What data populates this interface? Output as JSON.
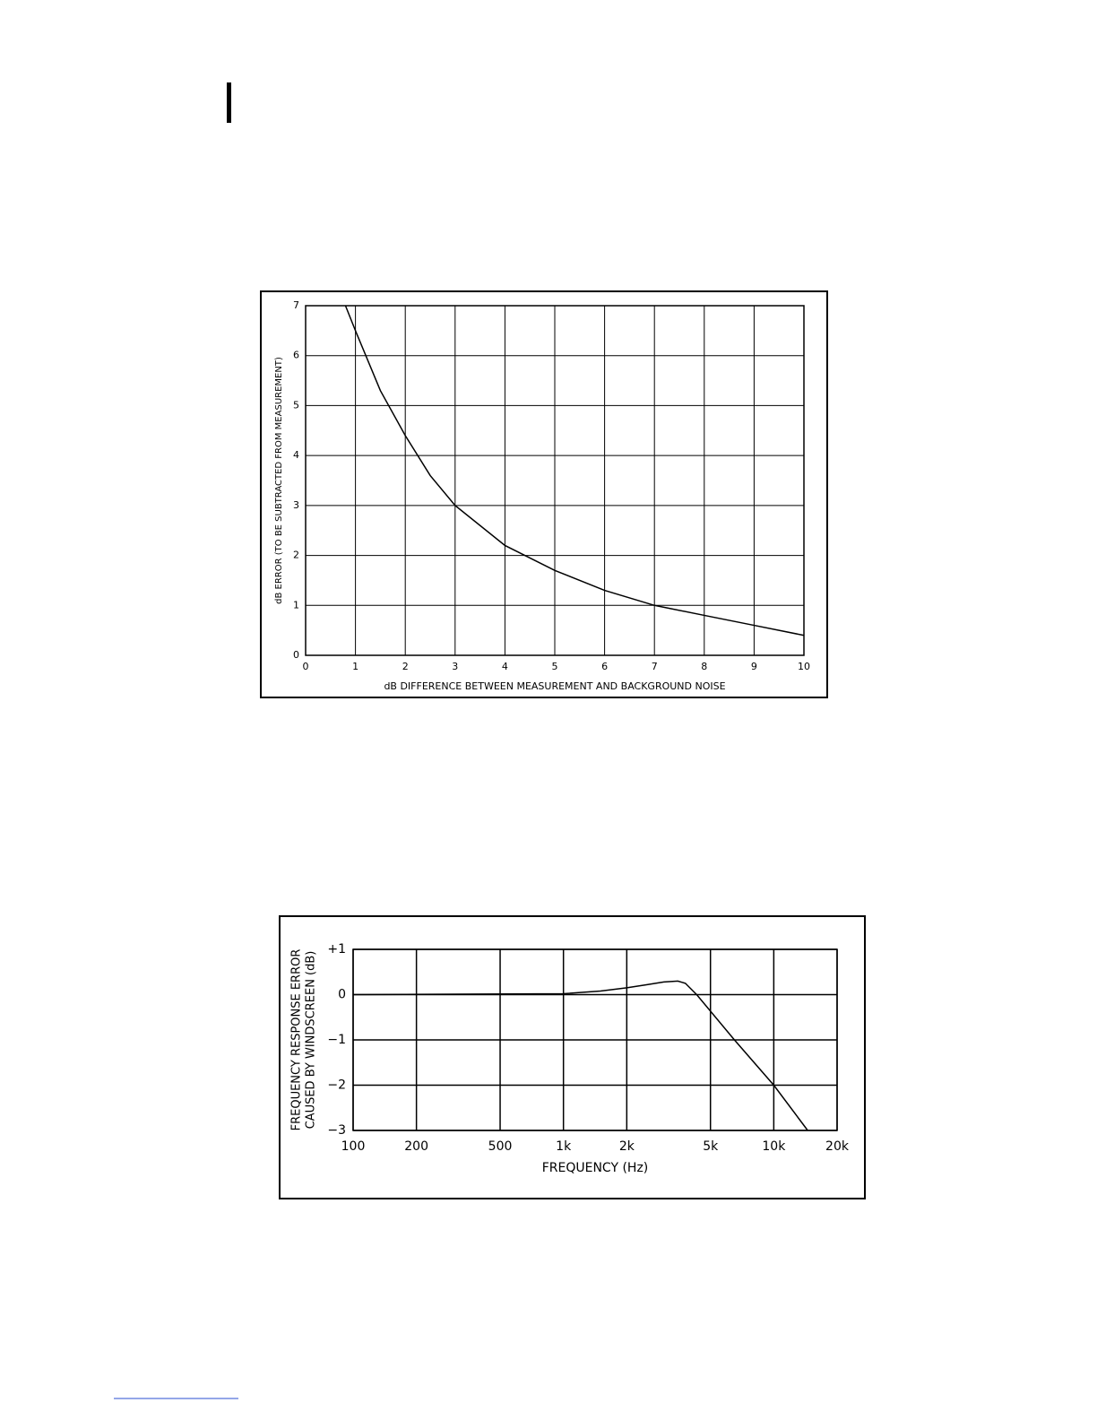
{
  "chart_data": [
    {
      "type": "line",
      "color": "#000000",
      "grid": true,
      "xlabel": "dB DIFFERENCE BETWEEN MEASUREMENT AND BACKGROUND NOISE",
      "ylabel": [
        "dB ERROR (TO BE SUBTRACTED FROM MEASUREMENT)"
      ],
      "x": [
        0.8,
        1,
        1.5,
        2,
        2.5,
        3,
        4,
        5,
        6,
        7,
        8,
        9,
        10
      ],
      "values": [
        7,
        6.5,
        5.3,
        4.4,
        3.6,
        3.0,
        2.2,
        1.7,
        1.3,
        1.0,
        0.8,
        0.6,
        0.4
      ],
      "xlim": [
        0,
        10
      ],
      "xticks": [
        0,
        1,
        2,
        3,
        4,
        5,
        6,
        7,
        8,
        9,
        10
      ],
      "ylim": [
        0,
        7
      ],
      "yticks": [
        0,
        1,
        2,
        3,
        4,
        5,
        6,
        7
      ]
    },
    {
      "type": "line",
      "color": "#000000",
      "grid": true,
      "xscale": "log",
      "xlabel": "FREQUENCY (Hz)",
      "ylabel": [
        "FREQUENCY RESPONSE ERROR",
        "CAUSED BY WINDSCREEN (dB)"
      ],
      "x": [
        100,
        1000,
        1500,
        2000,
        2500,
        3000,
        3500,
        3800,
        4300,
        6500,
        10000,
        14500
      ],
      "values": [
        0,
        0.02,
        0.08,
        0.15,
        0.22,
        0.28,
        0.3,
        0.25,
        0,
        -1,
        -2,
        -3
      ],
      "xlim": [
        100,
        20000
      ],
      "xticks": [
        100,
        200,
        500,
        {
          "value": 1000,
          "label": "1k"
        },
        {
          "value": 2000,
          "label": "2k"
        },
        {
          "value": 5000,
          "label": "5k"
        },
        {
          "value": 10000,
          "label": "10k"
        },
        {
          "value": 20000,
          "label": "20k"
        }
      ],
      "ylim": [
        -3,
        1
      ],
      "yticks": [
        {
          "value": 1,
          "label": "+1"
        },
        0,
        {
          "value": -1,
          "label": "−1"
        },
        {
          "value": -2,
          "label": "−2"
        },
        {
          "value": -3,
          "label": "−3"
        }
      ]
    }
  ]
}
